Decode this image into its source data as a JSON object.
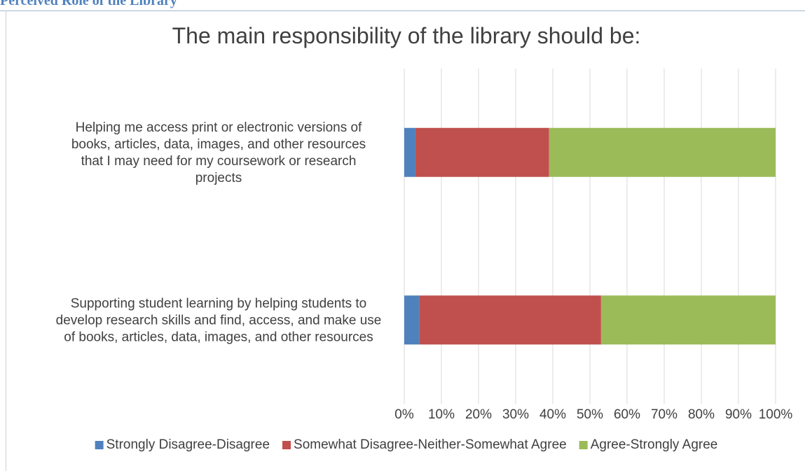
{
  "page_heading": "Perceived Role of the Library",
  "chart_data": {
    "type": "bar",
    "orientation": "horizontal",
    "stacked": true,
    "title": "The main responsibility of the library should be:",
    "categories": [
      "Helping me access print or electronic versions of books, articles, data, images, and other resources that I may need for my coursework or research projects",
      "Supporting student learning by helping students to develop research skills and find, access, and make use of books, articles, data, images, and other resources"
    ],
    "category_lines": [
      [
        "Helping me access print or electronic versions of",
        "books, articles, data, images, and other resources",
        "that I may need for my coursework or research",
        "projects"
      ],
      [
        "Supporting student learning by helping students to",
        "develop research skills and find, access, and make use",
        "of books, articles, data, images, and other resources"
      ]
    ],
    "series": [
      {
        "name": "Strongly Disagree-Disagree",
        "color": "#4f81bd",
        "values": [
          3,
          4
        ]
      },
      {
        "name": "Somewhat Disagree-Neither-Somewhat Agree",
        "color": "#c0504d",
        "values": [
          36,
          49
        ]
      },
      {
        "name": "Agree-Strongly Agree",
        "color": "#9bbb59",
        "values": [
          61,
          47
        ]
      }
    ],
    "xlim": [
      0,
      100
    ],
    "xticks": [
      "0%",
      "10%",
      "20%",
      "30%",
      "40%",
      "50%",
      "60%",
      "70%",
      "80%",
      "90%",
      "100%"
    ],
    "grid": true,
    "legend_position": "bottom"
  }
}
